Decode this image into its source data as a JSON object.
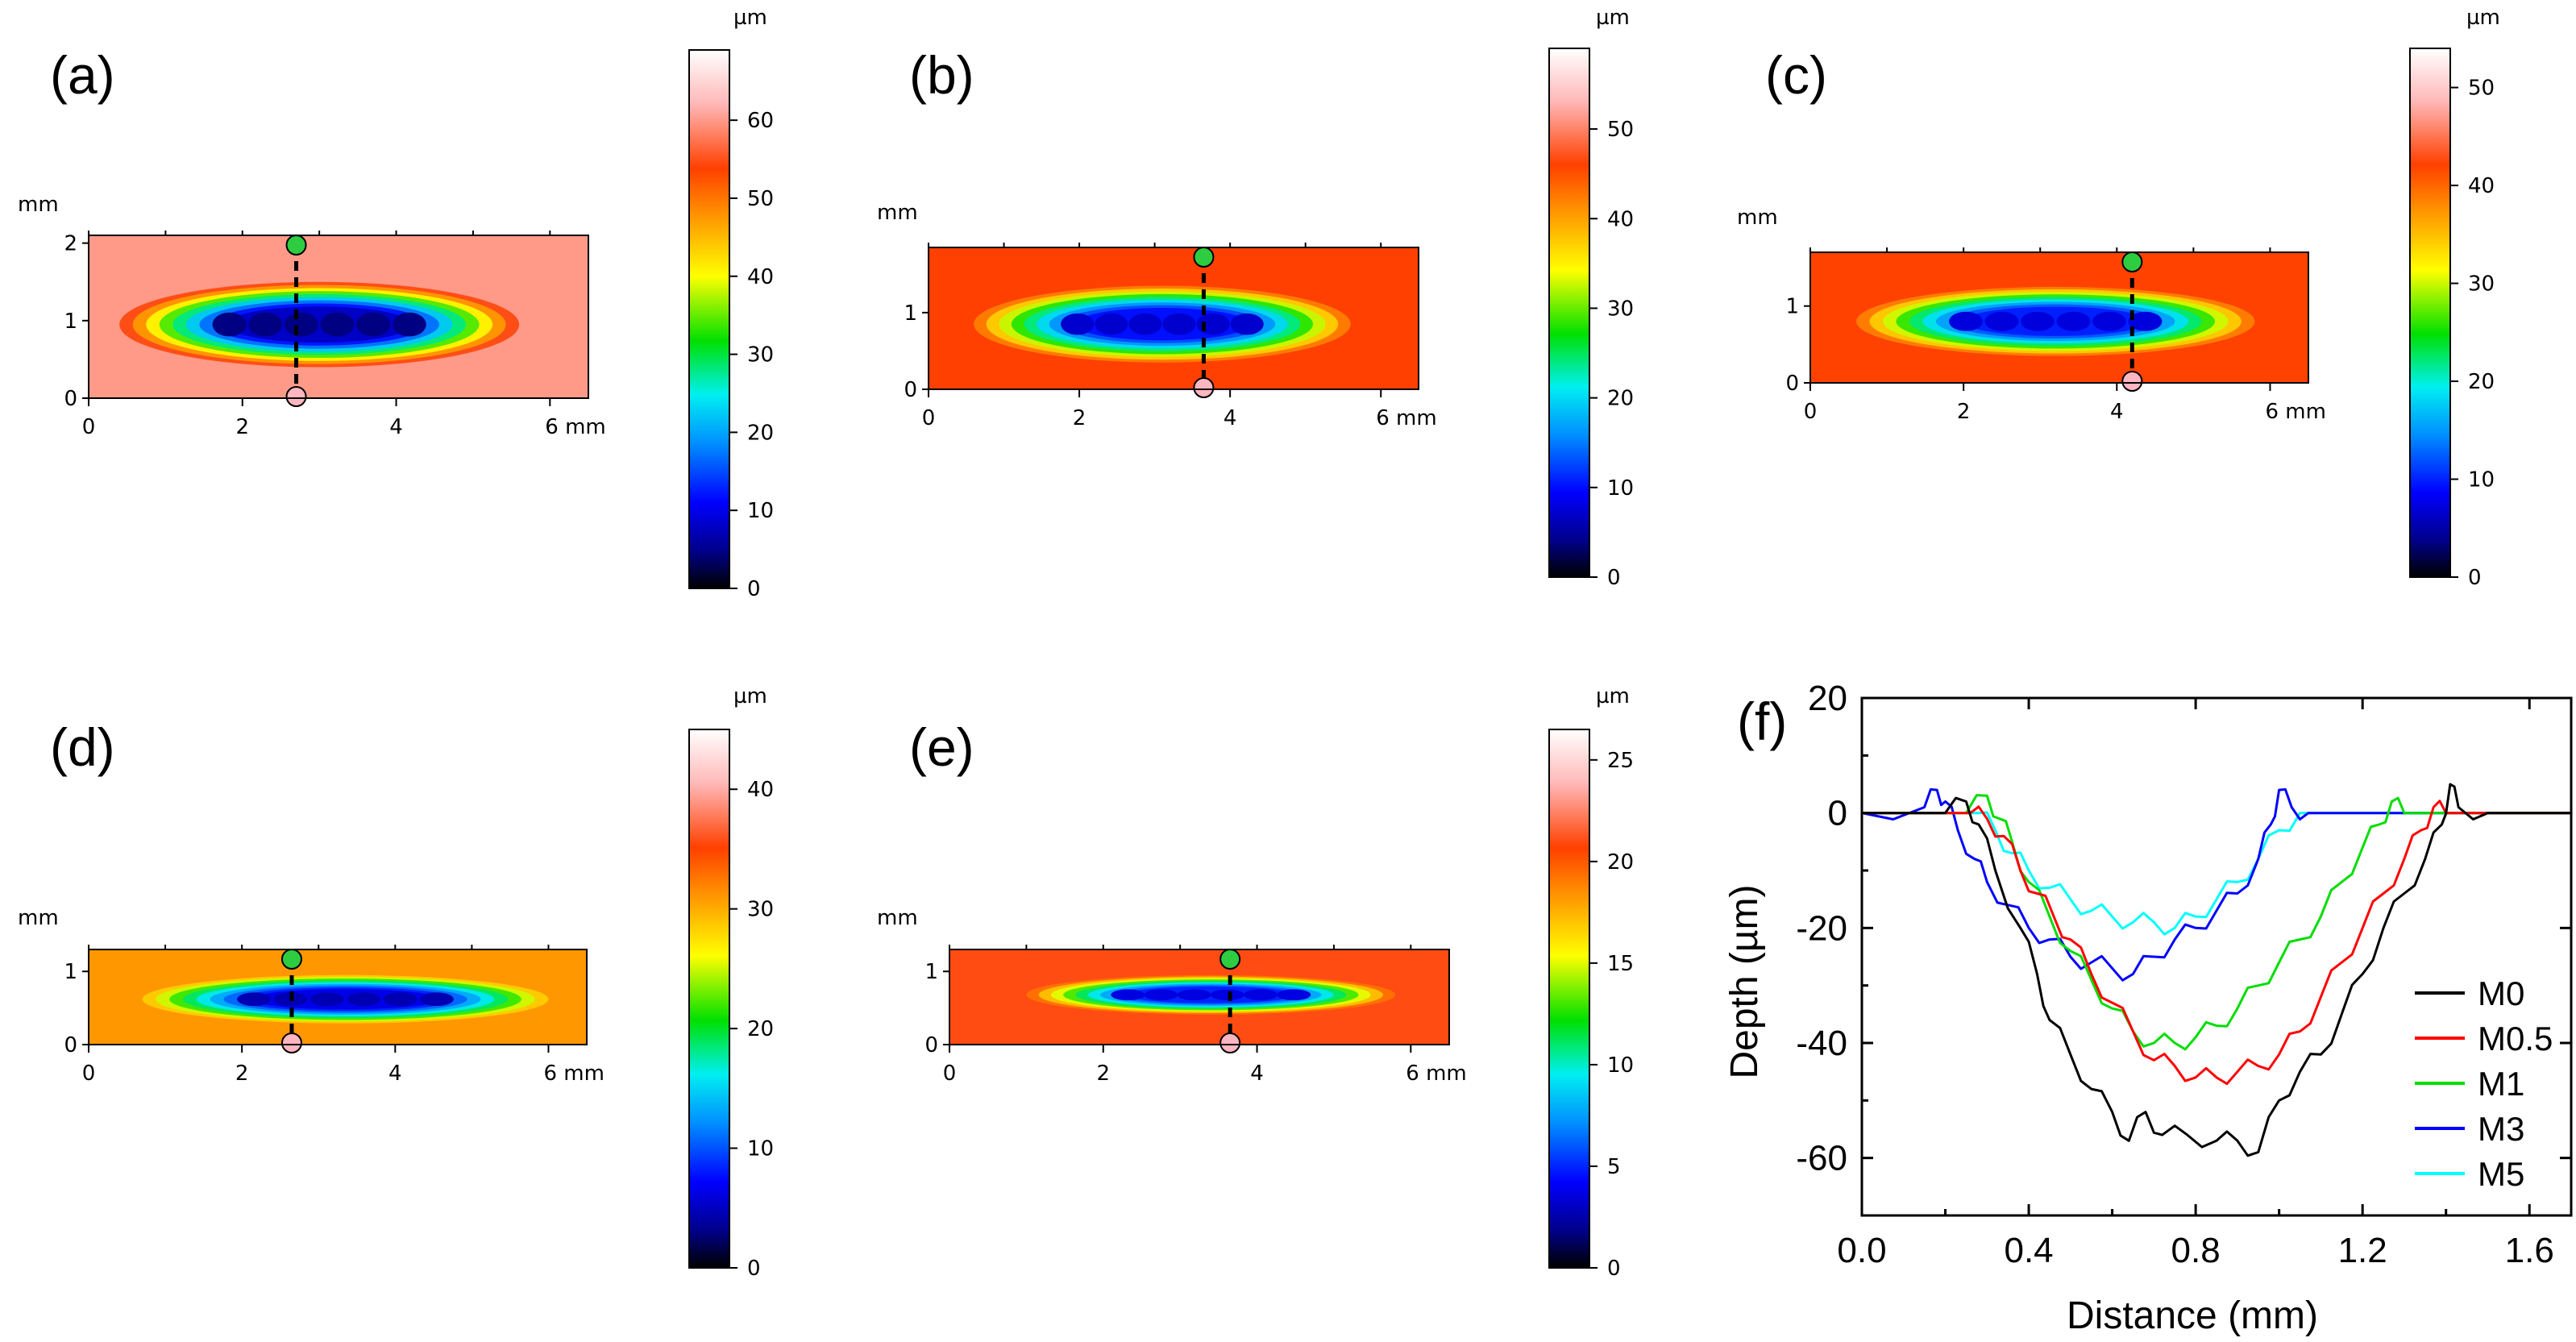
{
  "colors": {
    "colormap": [
      "#000000",
      "#00008b",
      "#0000ff",
      "#0090ff",
      "#00f0f0",
      "#00e000",
      "#ffff00",
      "#ffa000",
      "#ff4000",
      "#ffb8b8",
      "#ffffff"
    ],
    "series": {
      "M0": "#000000",
      "M0.5": "#ff0000",
      "M1": "#00dd00",
      "M3": "#0000ff",
      "M5": "#00ffff"
    }
  },
  "chart_data": [
    {
      "panel": "(a)",
      "type": "heatmap",
      "unit": "µm",
      "axis_unit": "mm",
      "x_ticks": [
        "0",
        "2",
        "4",
        "6 mm"
      ],
      "y_ticks": [
        "0",
        "1",
        "2"
      ],
      "xlim": [
        0,
        6.5
      ],
      "ylim": [
        0,
        2.1
      ],
      "colorbar_ticks": [
        "0",
        "10",
        "20",
        "30",
        "40",
        "50",
        "60"
      ],
      "colorbar_range": [
        0,
        69
      ],
      "background_value": 60,
      "groove_x_range": [
        0.4,
        5.6
      ],
      "groove_half_width": 0.55,
      "groove_center_y": 0.95,
      "min_depth_value": 5,
      "profile_x": 2.7
    },
    {
      "panel": "(b)",
      "type": "heatmap",
      "unit": "µm",
      "axis_unit": "mm",
      "x_ticks": [
        "0",
        "2",
        "4",
        "6 mm"
      ],
      "y_ticks": [
        "0",
        "1"
      ],
      "xlim": [
        0,
        6.5
      ],
      "ylim": [
        0,
        1.85
      ],
      "colorbar_ticks": [
        "0",
        "10",
        "20",
        "30",
        "40",
        "50"
      ],
      "colorbar_range": [
        0,
        59
      ],
      "background_value": 46,
      "groove_x_range": [
        0.6,
        5.6
      ],
      "groove_half_width": 0.5,
      "groove_center_y": 0.85,
      "min_depth_value": 8,
      "profile_x": 3.65
    },
    {
      "panel": "(c)",
      "type": "heatmap",
      "unit": "µm",
      "axis_unit": "mm",
      "x_ticks": [
        "0",
        "2",
        "4",
        "6 mm"
      ],
      "y_ticks": [
        "0",
        "1"
      ],
      "xlim": [
        0,
        6.5
      ],
      "ylim": [
        0,
        1.7
      ],
      "colorbar_ticks": [
        "0",
        "10",
        "20",
        "30",
        "40",
        "50"
      ],
      "colorbar_range": [
        0,
        54
      ],
      "background_value": 42,
      "groove_x_range": [
        0.6,
        5.8
      ],
      "groove_half_width": 0.45,
      "groove_center_y": 0.8,
      "min_depth_value": 8,
      "profile_x": 4.2
    },
    {
      "panel": "(d)",
      "type": "heatmap",
      "unit": "µm",
      "axis_unit": "mm",
      "x_ticks": [
        "0",
        "2",
        "4",
        "6 mm"
      ],
      "y_ticks": [
        "0",
        "1"
      ],
      "xlim": [
        0,
        6.5
      ],
      "ylim": [
        0,
        1.3
      ],
      "colorbar_ticks": [
        "0",
        "10",
        "20",
        "30",
        "40"
      ],
      "colorbar_range": [
        0,
        45
      ],
      "background_value": 31,
      "groove_x_range": [
        0.7,
        6.0
      ],
      "groove_half_width": 0.33,
      "groove_center_y": 0.62,
      "min_depth_value": 5,
      "profile_x": 2.65
    },
    {
      "panel": "(e)",
      "type": "heatmap",
      "unit": "µm",
      "axis_unit": "mm",
      "x_ticks": [
        "0",
        "2",
        "4",
        "6 mm"
      ],
      "y_ticks": [
        "0",
        "1"
      ],
      "xlim": [
        0,
        6.5
      ],
      "ylim": [
        0,
        1.3
      ],
      "colorbar_ticks": [
        "0",
        "5",
        "10",
        "15",
        "20",
        "25"
      ],
      "colorbar_range": [
        0,
        26.5
      ],
      "background_value": 21,
      "groove_x_range": [
        1.0,
        5.8
      ],
      "groove_half_width": 0.27,
      "groove_center_y": 0.68,
      "min_depth_value": 4,
      "profile_x": 3.65
    },
    {
      "panel": "(f)",
      "type": "line",
      "xlabel": "Distance (mm)",
      "ylabel": "Depth (µm)",
      "xlim": [
        0.0,
        1.7
      ],
      "ylim": [
        -70,
        20
      ],
      "x_ticks": [
        "0.0",
        "0.4",
        "0.8",
        "1.2",
        "1.6"
      ],
      "y_ticks": [
        "20",
        "0",
        "-20",
        "-40",
        "-60"
      ],
      "legend_position": "bottom-right",
      "series": [
        {
          "name": "M0",
          "x": [
            0,
            0.2,
            0.25,
            0.28,
            0.32,
            0.38,
            0.42,
            0.45,
            0.5,
            0.55,
            0.6,
            0.64,
            0.68,
            0.72,
            0.78,
            0.85,
            0.9,
            0.95,
            1.0,
            1.05,
            1.1,
            1.15,
            1.2,
            1.25,
            1.3,
            1.35,
            1.39,
            1.41,
            1.43,
            1.5,
            1.7
          ],
          "y": [
            0,
            0,
            2,
            -2,
            -10,
            -20,
            -28,
            -36,
            -42,
            -48,
            -52,
            -57,
            -52,
            -56,
            -56,
            -57,
            -57,
            -59,
            -50,
            -45,
            -42,
            -35,
            -28,
            -20,
            -14,
            -8,
            -2,
            5,
            1,
            0,
            0
          ]
        },
        {
          "name": "M0.5",
          "x": [
            0,
            0.26,
            0.3,
            0.34,
            0.38,
            0.42,
            0.46,
            0.5,
            0.55,
            0.6,
            0.65,
            0.7,
            0.75,
            0.8,
            0.85,
            0.9,
            0.95,
            1.0,
            1.05,
            1.1,
            1.15,
            1.2,
            1.25,
            1.3,
            1.34,
            1.37,
            1.4,
            1.5,
            1.7
          ],
          "y": [
            0,
            0,
            -1,
            -4,
            -10,
            -14,
            -18,
            -22,
            -28,
            -33,
            -38,
            -43,
            -44,
            -46,
            -46,
            -45,
            -44,
            -42,
            -38,
            -32,
            -26,
            -20,
            -14,
            -8,
            -3,
            1,
            0,
            0,
            0
          ]
        },
        {
          "name": "M1",
          "x": [
            0,
            0.25,
            0.3,
            0.33,
            0.36,
            0.4,
            0.45,
            0.5,
            0.55,
            0.6,
            0.65,
            0.7,
            0.75,
            0.8,
            0.85,
            0.9,
            0.95,
            1.0,
            1.05,
            1.1,
            1.15,
            1.2,
            1.24,
            1.27,
            1.3,
            1.5,
            1.7
          ],
          "y": [
            0,
            0,
            3,
            -1,
            -5,
            -12,
            -18,
            -24,
            -29,
            -34,
            -38,
            -40,
            -40,
            -39,
            -37,
            -34,
            -30,
            -26,
            -22,
            -18,
            -12,
            -6,
            -2,
            2,
            0,
            0,
            0
          ]
        },
        {
          "name": "M3",
          "x": [
            0,
            0.15,
            0.18,
            0.2,
            0.23,
            0.27,
            0.3,
            0.35,
            0.4,
            0.45,
            0.5,
            0.55,
            0.6,
            0.65,
            0.7,
            0.75,
            0.8,
            0.85,
            0.9,
            0.95,
            0.98,
            1.0,
            1.03,
            1.07,
            1.1,
            1.2,
            1.7
          ],
          "y": [
            0,
            1,
            4,
            2,
            -3,
            -8,
            -12,
            -16,
            -20,
            -22,
            -25,
            -26,
            -27,
            -28,
            -25,
            -22,
            -20,
            -17,
            -14,
            -8,
            -2,
            4,
            1,
            0,
            0,
            0,
            0
          ]
        },
        {
          "name": "M5",
          "x": [
            0,
            0.28,
            0.32,
            0.36,
            0.4,
            0.45,
            0.5,
            0.55,
            0.6,
            0.65,
            0.7,
            0.75,
            0.8,
            0.85,
            0.9,
            0.95,
            1.0,
            1.05,
            1.1,
            1.2,
            1.7
          ],
          "y": [
            0,
            0,
            -3,
            -7,
            -10,
            -13,
            -15,
            -17,
            -18,
            -19,
            -19,
            -20,
            -18,
            -15,
            -12,
            -8,
            -3,
            0,
            0,
            0,
            0
          ]
        }
      ]
    }
  ]
}
